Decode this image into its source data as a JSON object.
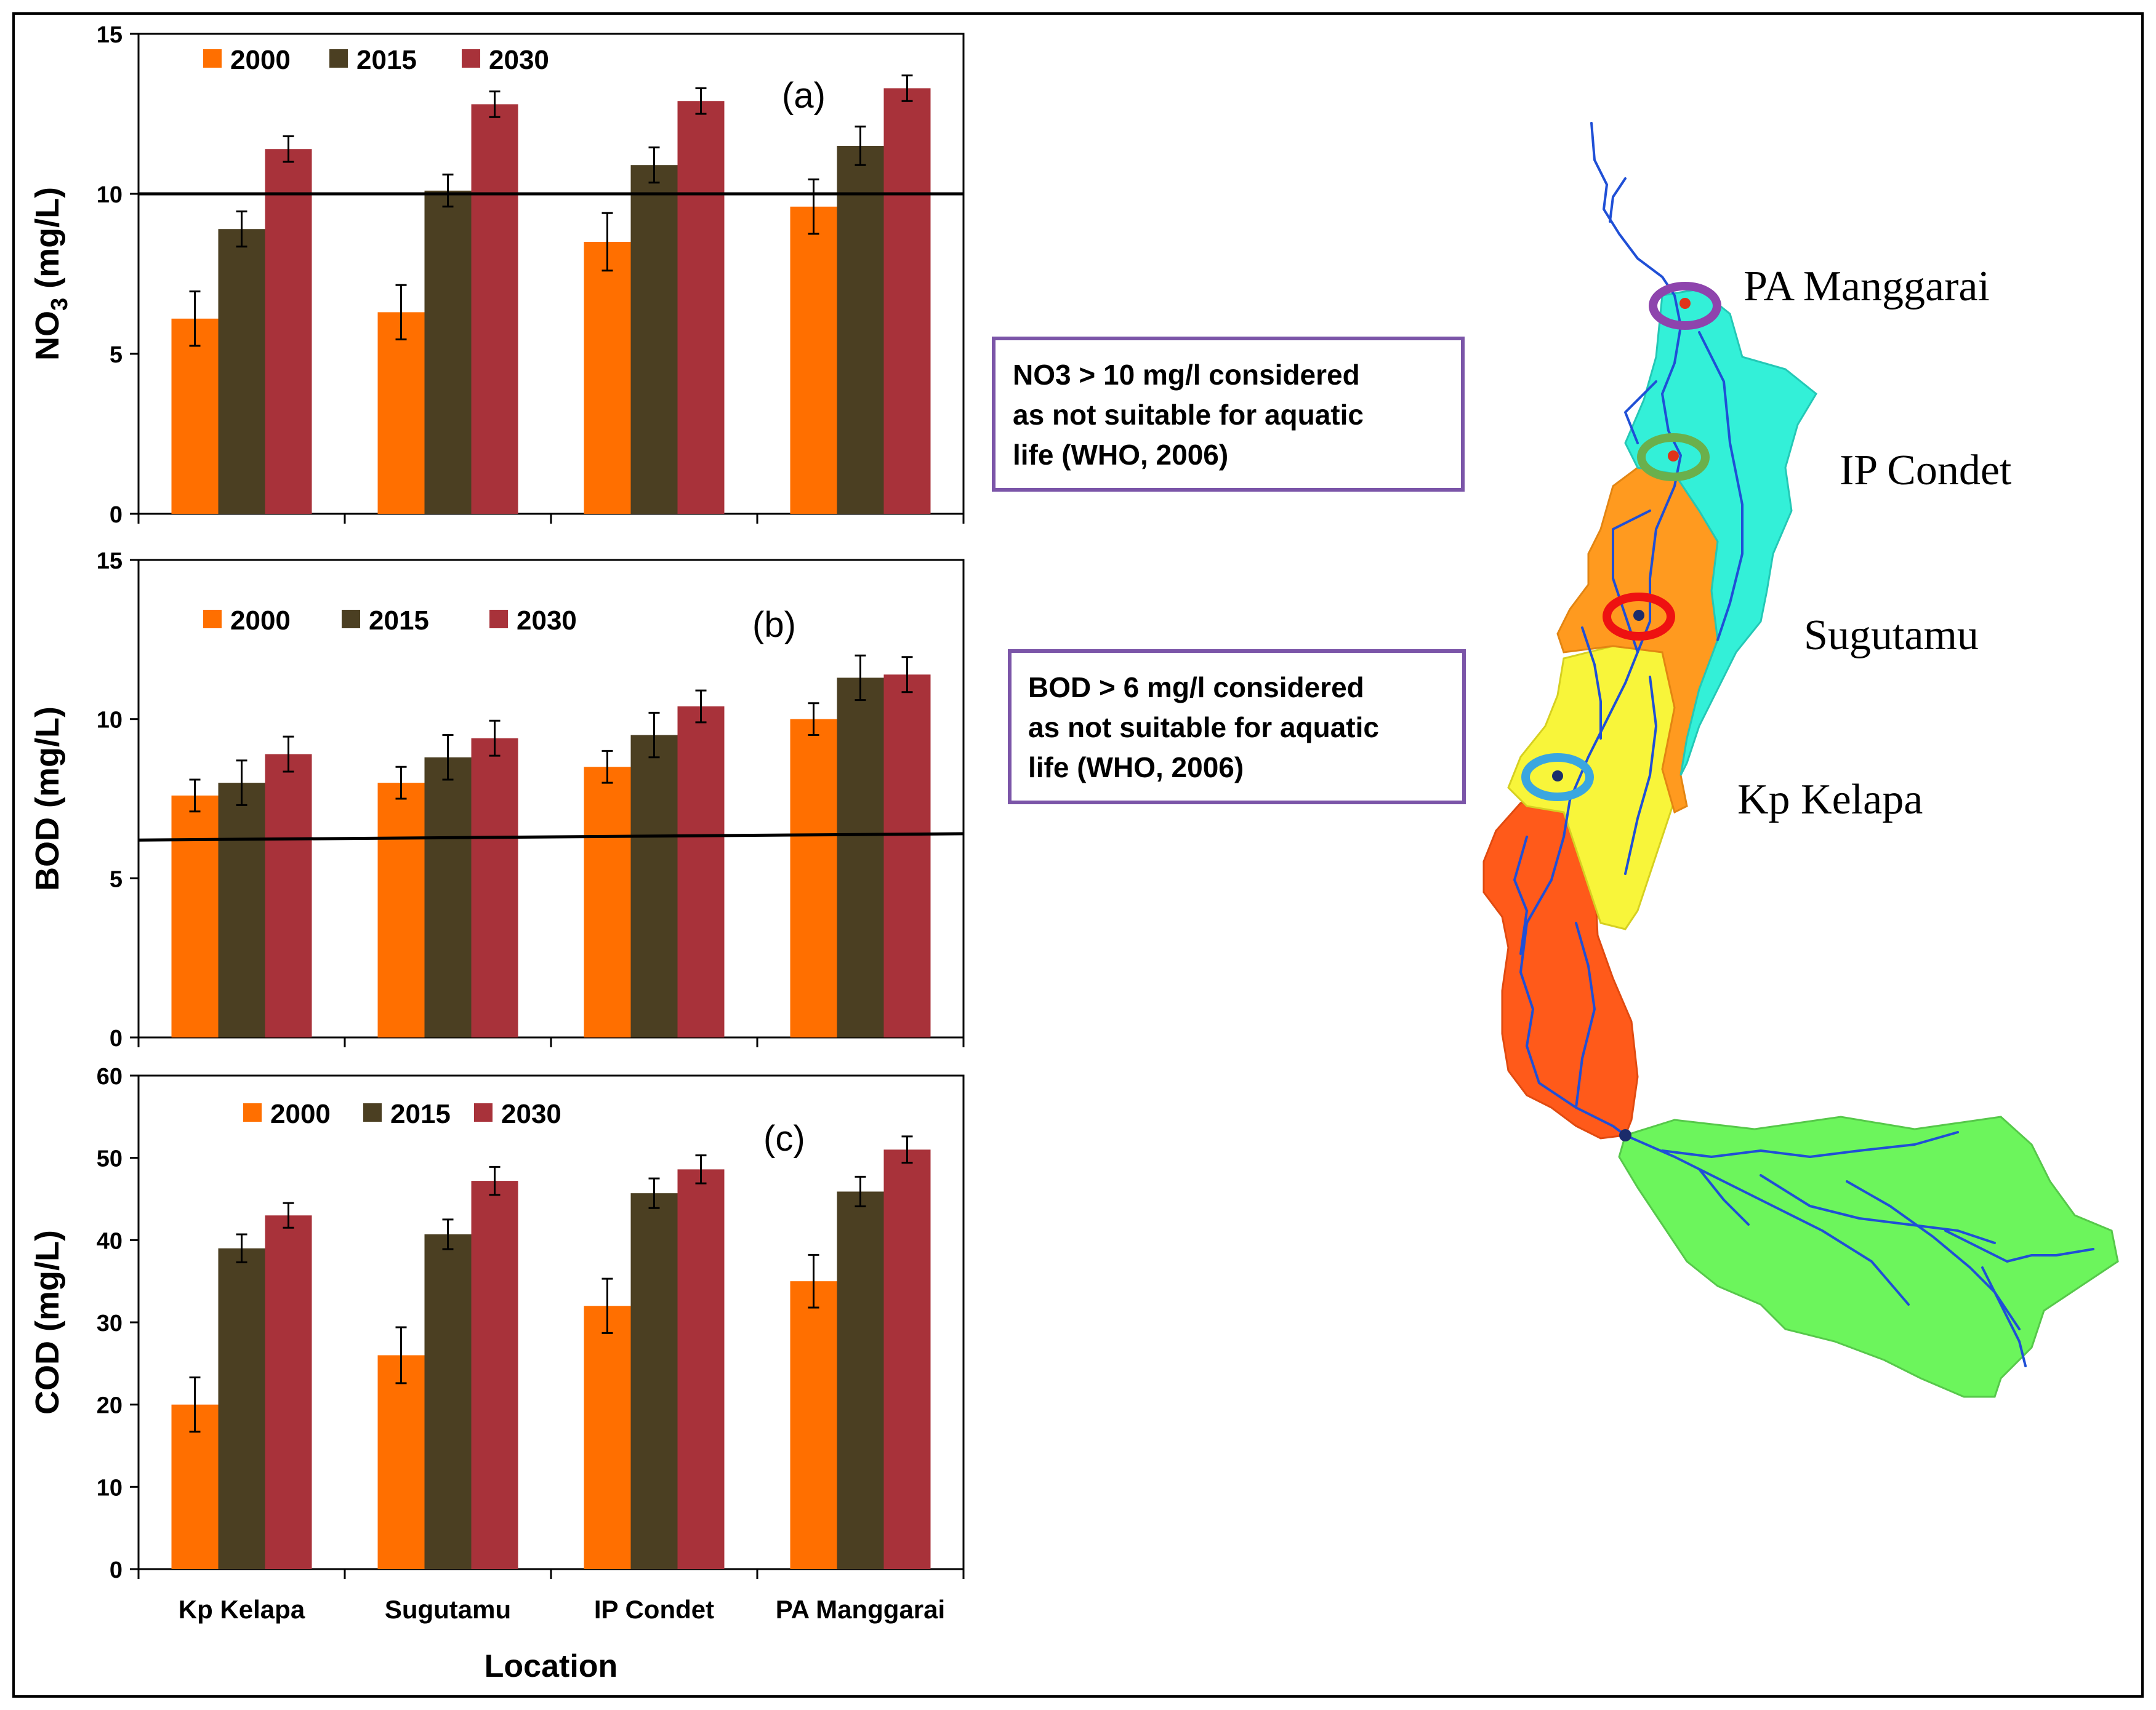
{
  "chart_data": [
    {
      "id": "a",
      "type": "bar",
      "panel_tag": "(a)",
      "ylabel": "NO3 (mg/L)",
      "ylabel_main": "NO",
      "ylabel_sub": "3",
      "ylabel_unit": " (mg/L)",
      "ylim": [
        0,
        15
      ],
      "yticks": [
        0,
        5,
        10,
        15
      ],
      "categories": [
        "Kp Kelapa",
        "Sugutamu",
        "IP Condet",
        "PA Manggarai"
      ],
      "series": [
        {
          "name": "2000",
          "color": "#ff6f00",
          "values": [
            6.1,
            6.3,
            8.5,
            9.6
          ],
          "errors": [
            0.85,
            0.85,
            0.9,
            0.85
          ]
        },
        {
          "name": "2015",
          "color": "#4b3f22",
          "values": [
            8.9,
            10.1,
            10.9,
            11.5
          ],
          "errors": [
            0.55,
            0.5,
            0.55,
            0.6
          ]
        },
        {
          "name": "2030",
          "color": "#a8323a",
          "values": [
            11.4,
            12.8,
            12.9,
            13.3
          ],
          "errors": [
            0.4,
            0.4,
            0.4,
            0.4
          ]
        }
      ],
      "threshold": [
        10,
        10
      ]
    },
    {
      "id": "b",
      "type": "bar",
      "panel_tag": "(b)",
      "ylabel": "BOD (mg/L)",
      "ylabel_main": "BOD (mg/L)",
      "ylabel_sub": "",
      "ylabel_unit": "",
      "ylim": [
        0,
        15
      ],
      "yticks": [
        0,
        5,
        10,
        15
      ],
      "categories": [
        "Kp Kelapa",
        "Sugutamu",
        "IP Condet",
        "PA Manggarai"
      ],
      "series": [
        {
          "name": "2000",
          "color": "#ff6f00",
          "values": [
            7.6,
            8.0,
            8.5,
            10.0
          ],
          "errors": [
            0.5,
            0.5,
            0.5,
            0.5
          ]
        },
        {
          "name": "2015",
          "color": "#4b3f22",
          "values": [
            8.0,
            8.8,
            9.5,
            11.3
          ],
          "errors": [
            0.7,
            0.7,
            0.7,
            0.7
          ]
        },
        {
          "name": "2030",
          "color": "#a8323a",
          "values": [
            8.9,
            9.4,
            10.4,
            11.4
          ],
          "errors": [
            0.55,
            0.55,
            0.5,
            0.55
          ]
        }
      ],
      "threshold": [
        6.2,
        6.4
      ]
    },
    {
      "id": "c",
      "type": "bar",
      "panel_tag": "(c)",
      "ylabel": "COD (mg/L)",
      "ylabel_main": "COD (mg/L)",
      "ylabel_sub": "",
      "ylabel_unit": "",
      "ylim": [
        0,
        60
      ],
      "yticks": [
        0,
        10,
        20,
        30,
        40,
        50,
        60
      ],
      "categories": [
        "Kp Kelapa",
        "Sugutamu",
        "IP Condet",
        "PA Manggarai"
      ],
      "xlabel": "Location",
      "series": [
        {
          "name": "2000",
          "color": "#ff6f00",
          "values": [
            20.0,
            26.0,
            32.0,
            35.0
          ],
          "errors": [
            3.3,
            3.4,
            3.3,
            3.2
          ]
        },
        {
          "name": "2015",
          "color": "#4b3f22",
          "values": [
            39.0,
            40.7,
            45.7,
            45.9
          ],
          "errors": [
            1.7,
            1.8,
            1.8,
            1.8
          ]
        },
        {
          "name": "2030",
          "color": "#a8323a",
          "values": [
            43.0,
            47.2,
            48.6,
            51.0
          ],
          "errors": [
            1.5,
            1.7,
            1.7,
            1.6
          ]
        }
      ],
      "threshold": null
    }
  ],
  "notes": {
    "no3": [
      "NO3 > 10 mg/l considered",
      "as not suitable for aquatic",
      "life (WHO, 2006)"
    ],
    "bod": [
      "BOD > 6 mg/l considered",
      "as not suitable for aquatic",
      "life (WHO, 2006)"
    ]
  },
  "map": {
    "sites": [
      {
        "label": "PA Manggarai",
        "ring": "#8e44ad"
      },
      {
        "label": "IP Condet",
        "ring": "#6ab04c"
      },
      {
        "label": "Sugutamu",
        "ring": "#ee1111"
      },
      {
        "label": "Kp Kelapa",
        "ring": "#3aa6e0"
      }
    ],
    "colors": {
      "cyan": "#33f0d8",
      "orange": "#ff9a1f",
      "yellow": "#f8f53a",
      "red": "#ff5a1a",
      "green": "#6cf55c",
      "river": "#1f4fd6"
    }
  }
}
